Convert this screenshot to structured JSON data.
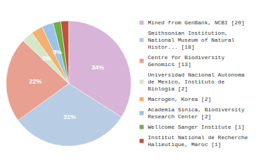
{
  "chart_data": {
    "type": "pie",
    "categories": [
      "Mined from GenBank, NCBI [20]",
      "Smithsonian Institution,\nNational Museum of Natural\nHistor... [18]",
      "Centre for Biodiversity\nGenomics [13]",
      "Universidad Nacional Autonoma\nde Mexico, Instituto de\nBiologia [2]",
      "Macrogen, Korea [2]",
      "Academia Sinica, Biodiversity\nResearch Center [2]",
      "Wellcome Sanger Institute [1]",
      "Institut National de Recherche\nHalieutique, Maroc [1]"
    ],
    "values": [
      34,
      31,
      22,
      3,
      3,
      3,
      2,
      2
    ],
    "value_labels": [
      "34%",
      "31%",
      "22%",
      "3%",
      "3%",
      "3%",
      null,
      null
    ],
    "colors": [
      "#d8b4d8",
      "#b8cce4",
      "#e8a090",
      "#d4e8c8",
      "#f4b070",
      "#9dc3e6",
      "#70ad47",
      "#c05040"
    ],
    "data_labels": true,
    "legend": "right"
  }
}
